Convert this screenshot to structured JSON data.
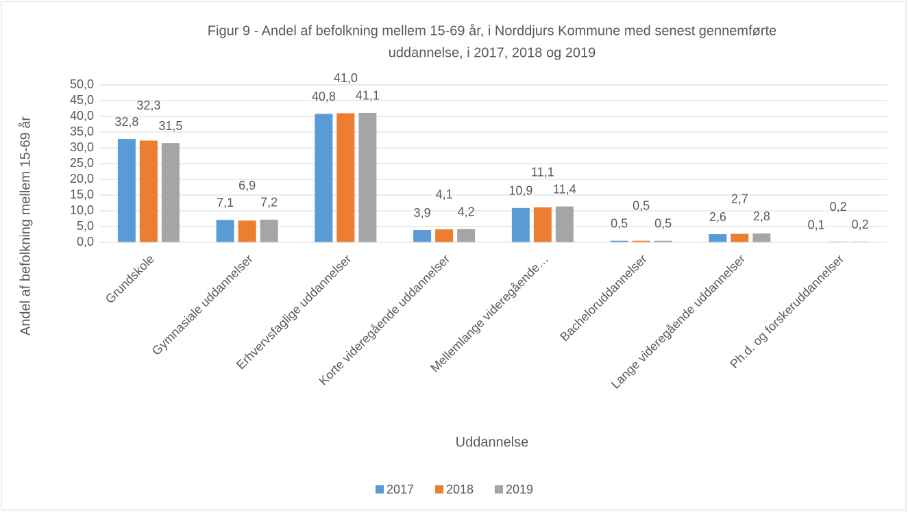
{
  "chart_data": {
    "type": "bar",
    "title": [
      "Figur 9 - Andel af befolkning mellem 15-69 år, i Norddjurs Kommune med senest gennemførte",
      "uddannelse, i 2017, 2018 og 2019"
    ],
    "xlabel": "Uddannelse",
    "ylabel": "Andel af befolkning mellem 15-69 år",
    "categories": [
      "Grundskole",
      "Gymnasiale uddannelser",
      "Erhvervsfaglige uddannelser",
      "Korte videregående uddannelser",
      "Mellemlange videregående…",
      "Bacheloruddannelser",
      "Lange videregående uddannelser",
      "Ph.d. og forskeruddannelser"
    ],
    "series": [
      {
        "name": "2017",
        "color": "#5b9bd5",
        "values": [
          32.8,
          7.1,
          40.8,
          3.9,
          10.9,
          0.5,
          2.6,
          0.1
        ],
        "value_labels": [
          "32,8",
          "7,1",
          "40,8",
          "3,9",
          "10,9",
          "0,5",
          "2,6",
          "0,1"
        ]
      },
      {
        "name": "2018",
        "color": "#ed7d31",
        "values": [
          32.3,
          6.9,
          41.0,
          4.1,
          11.1,
          0.5,
          2.7,
          0.2
        ],
        "value_labels": [
          "32,3",
          "6,9",
          "41,0",
          "4,1",
          "11,1",
          "0,5",
          "2,7",
          "0,2"
        ]
      },
      {
        "name": "2019",
        "color": "#a5a5a5",
        "values": [
          31.5,
          7.2,
          41.1,
          4.2,
          11.4,
          0.5,
          2.8,
          0.2
        ],
        "value_labels": [
          "31,5",
          "7,2",
          "41,1",
          "4,2",
          "11,4",
          "0,5",
          "2,8",
          "0,2"
        ]
      }
    ],
    "ylim": [
      0,
      50
    ],
    "yticks": [
      {
        "value": 0,
        "label": "0,0"
      },
      {
        "value": 5,
        "label": "5,0"
      },
      {
        "value": 10,
        "label": "10,0"
      },
      {
        "value": 15,
        "label": "15,0"
      },
      {
        "value": 20,
        "label": "20,0"
      },
      {
        "value": 25,
        "label": "25,0"
      },
      {
        "value": 30,
        "label": "30,0"
      },
      {
        "value": 35,
        "label": "35,0"
      },
      {
        "value": 40,
        "label": "40,0"
      },
      {
        "value": 45,
        "label": "45,0"
      },
      {
        "value": 50,
        "label": "50,0"
      }
    ],
    "grid": true,
    "legend": "bottom"
  }
}
